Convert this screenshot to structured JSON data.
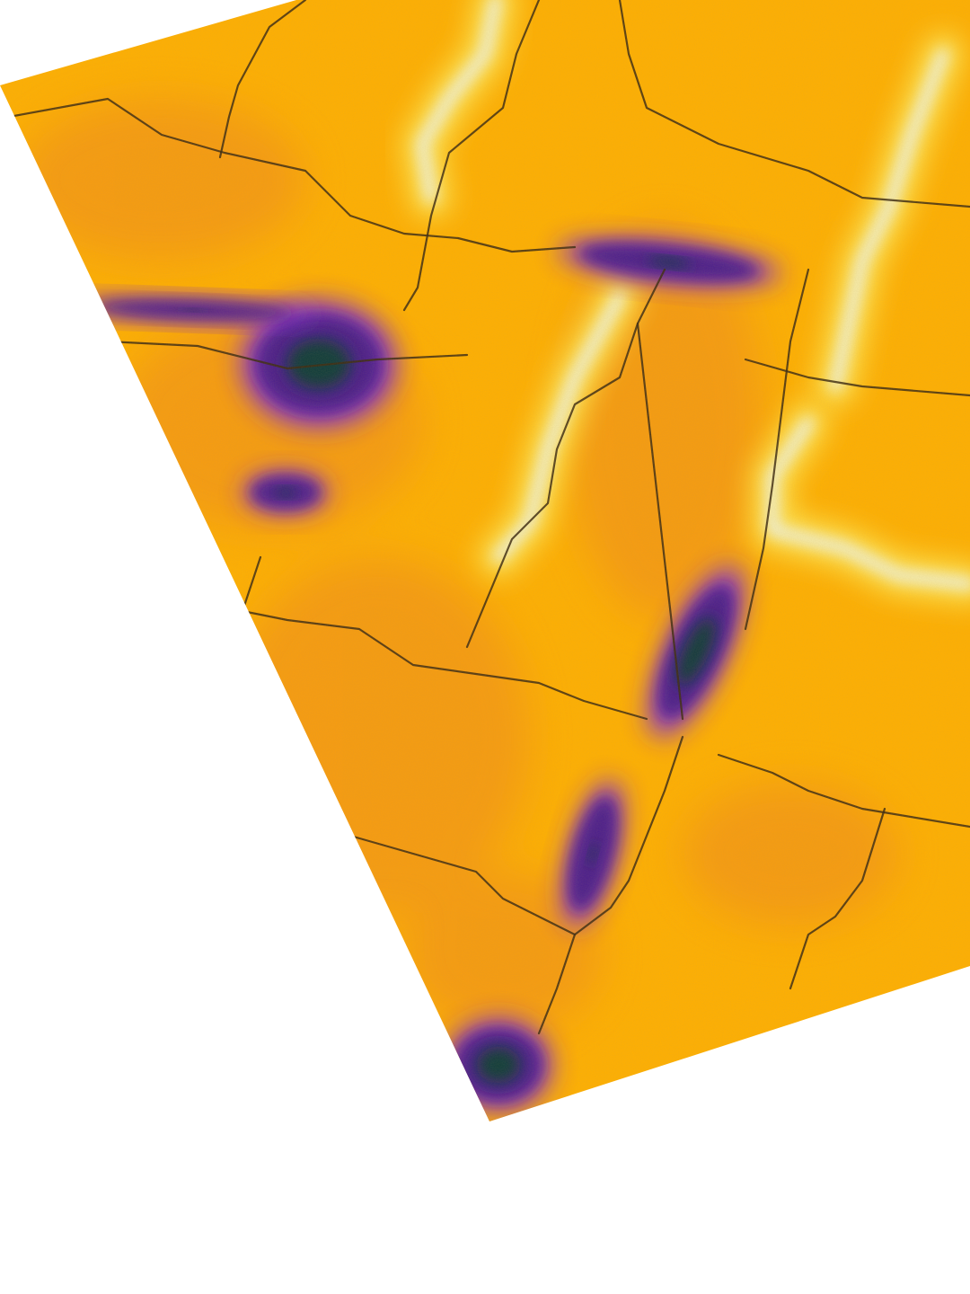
{
  "image": {
    "kind": "false-color elevation/thermal raster tile (unlabeled)",
    "background": "#ffffff"
  },
  "palette": {
    "lowest": "#0f3a3a",
    "low": "#4a1a8c",
    "mid_low": "#7d2bd6",
    "mid": "#f08c1e",
    "base": "#ffb000",
    "high": "#ffe14a",
    "highest": "#eef6f6",
    "line": "#3b2a12"
  },
  "features": {
    "low_spots": [
      {
        "name": "large-low-spot-upper-left",
        "level": 0.05
      },
      {
        "name": "small-low-spot-left",
        "level": 0.2
      },
      {
        "name": "elongated-low-spot-center",
        "level": 0.05
      },
      {
        "name": "low-strip-top-center",
        "level": 0.2
      },
      {
        "name": "low-streak-left-edge",
        "level": 0.25
      },
      {
        "name": "low-spot-lower-center",
        "level": 0.25
      },
      {
        "name": "low-spot-bottom",
        "level": 0.05
      }
    ],
    "ridges": [
      {
        "name": "bright-ridge-top-center"
      },
      {
        "name": "bright-ridge-right"
      },
      {
        "name": "bright-ridge-center-diagonal"
      },
      {
        "name": "bright-ridge-lower-right"
      }
    ],
    "field_boundaries": 14
  }
}
